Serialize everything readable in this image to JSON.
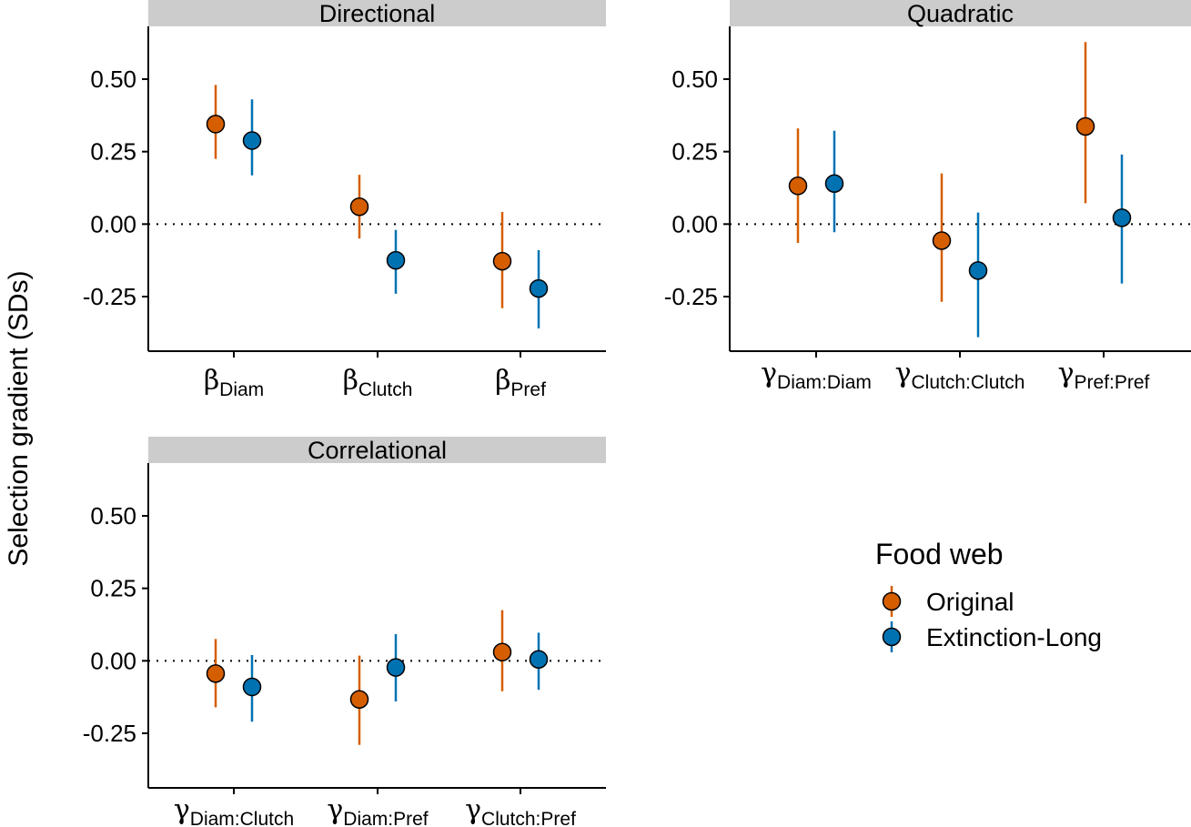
{
  "chart_data": {
    "type": "scatter",
    "subtype": "point-range (faceted)",
    "ylabel": "Selection gradient (SDs)",
    "ylim": [
      -0.44,
      0.68
    ],
    "yticks": [
      -0.25,
      0,
      0.25,
      0.5
    ],
    "ytick_labels": [
      "-0.25",
      "0.00",
      "0.25",
      "0.50"
    ],
    "reference_line": {
      "y": 0,
      "style": "dotted"
    },
    "grid": false,
    "legend": {
      "title": "Food web",
      "placement": "right",
      "entries": [
        {
          "name": "Original",
          "color": "#D55E00"
        },
        {
          "name": "Extinction-Long",
          "color": "#0072B2"
        }
      ]
    },
    "facets": [
      {
        "title": "Directional",
        "categories": [
          {
            "symbol": "β",
            "sub": "Diam"
          },
          {
            "symbol": "β",
            "sub": "Clutch"
          },
          {
            "symbol": "β",
            "sub": "Pref"
          }
        ],
        "series": [
          {
            "name": "Original",
            "values": [
              0.345,
              0.06,
              -0.128
            ],
            "lower": [
              0.225,
              -0.05,
              -0.29
            ],
            "upper": [
              0.48,
              0.17,
              0.042
            ]
          },
          {
            "name": "Extinction-Long",
            "values": [
              0.288,
              -0.125,
              -0.222
            ],
            "lower": [
              0.168,
              -0.24,
              -0.36
            ],
            "upper": [
              0.43,
              -0.02,
              -0.09
            ]
          }
        ]
      },
      {
        "title": "Quadratic",
        "categories": [
          {
            "symbol": "γ",
            "sub": "Diam:Diam"
          },
          {
            "symbol": "γ",
            "sub": "Clutch:Clutch"
          },
          {
            "symbol": "γ",
            "sub": "Pref:Pref"
          }
        ],
        "series": [
          {
            "name": "Original",
            "values": [
              0.132,
              -0.057,
              0.337
            ],
            "lower": [
              -0.065,
              -0.268,
              0.072
            ],
            "upper": [
              0.33,
              0.175,
              0.628
            ]
          },
          {
            "name": "Extinction-Long",
            "values": [
              0.14,
              -0.16,
              0.022
            ],
            "lower": [
              -0.028,
              -0.39,
              -0.205
            ],
            "upper": [
              0.322,
              0.04,
              0.24
            ]
          }
        ]
      },
      {
        "title": "Correlational",
        "categories": [
          {
            "symbol": "γ",
            "sub": "Diam:Clutch"
          },
          {
            "symbol": "γ",
            "sub": "Diam:Pref"
          },
          {
            "symbol": "γ",
            "sub": "Clutch:Pref"
          }
        ],
        "series": [
          {
            "name": "Original",
            "values": [
              -0.044,
              -0.133,
              0.03
            ],
            "lower": [
              -0.16,
              -0.29,
              -0.105
            ],
            "upper": [
              0.075,
              0.018,
              0.175
            ]
          },
          {
            "name": "Extinction-Long",
            "values": [
              -0.09,
              -0.023,
              0.005
            ],
            "lower": [
              -0.21,
              -0.14,
              -0.1
            ],
            "upper": [
              0.02,
              0.092,
              0.097
            ]
          }
        ]
      }
    ]
  }
}
